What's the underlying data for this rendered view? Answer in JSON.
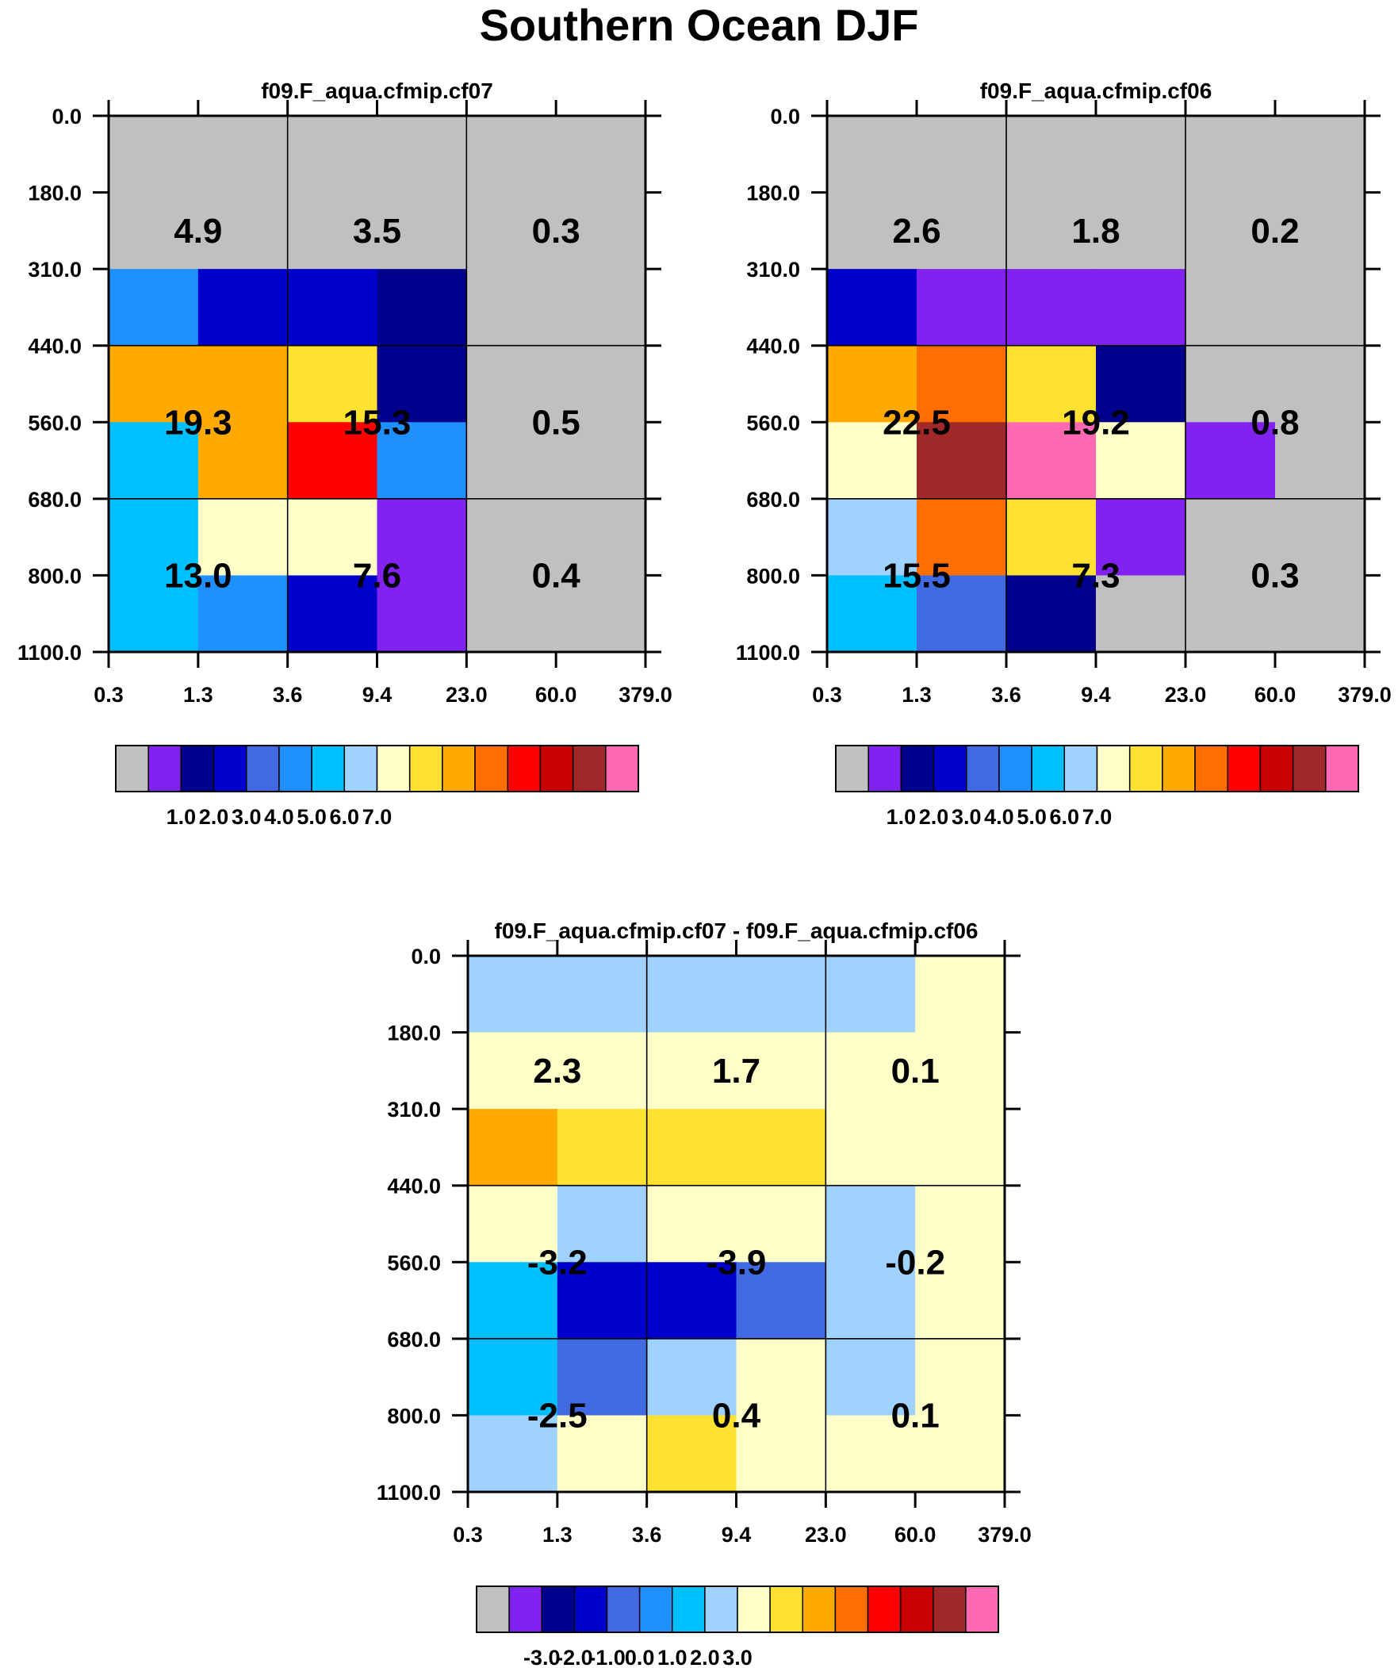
{
  "title": "Southern Ocean DJF",
  "palette": [
    "#c0c0c0",
    "#8222f0",
    "#00008c",
    "#0000cd",
    "#4169e1",
    "#1e90ff",
    "#00bfff",
    "#a0d2ff",
    "#ffffc8",
    "#ffe132",
    "#ffaa00",
    "#ff6e00",
    "#ff0000",
    "#c80000",
    "#a02828",
    "#ff69b4"
  ],
  "chart_data": [
    {
      "type": "heatmap",
      "title": "f09.F_aqua.cfmip.cf07",
      "x_ticks": [
        "0.3",
        "1.3",
        "3.6",
        "9.4",
        "23.0",
        "60.0",
        "379.0"
      ],
      "y_ticks": [
        "0.0",
        "180.0",
        "310.0",
        "440.0",
        "560.0",
        "680.0",
        "800.0",
        "1100.0"
      ],
      "color_index_grid": [
        [
          0,
          0,
          0,
          0,
          0,
          0
        ],
        [
          0,
          0,
          0,
          0,
          0,
          0
        ],
        [
          5,
          3,
          3,
          2,
          0,
          0
        ],
        [
          10,
          10,
          9,
          2,
          0,
          0
        ],
        [
          6,
          10,
          12,
          5,
          0,
          0
        ],
        [
          6,
          8,
          8,
          1,
          0,
          0
        ],
        [
          6,
          5,
          3,
          1,
          0,
          0
        ]
      ],
      "box_values": [
        [
          "4.9",
          "3.5",
          "0.3"
        ],
        [
          "19.3",
          "15.3",
          "0.5"
        ],
        [
          "13.0",
          "7.6",
          "0.4"
        ]
      ],
      "colorbar_labels": [
        "1.0",
        "2.0",
        "3.0",
        "4.0",
        "5.0",
        "6.0",
        "7.0"
      ]
    },
    {
      "type": "heatmap",
      "title": "f09.F_aqua.cfmip.cf06",
      "x_ticks": [
        "0.3",
        "1.3",
        "3.6",
        "9.4",
        "23.0",
        "60.0",
        "379.0"
      ],
      "y_ticks": [
        "0.0",
        "180.0",
        "310.0",
        "440.0",
        "560.0",
        "680.0",
        "800.0",
        "1100.0"
      ],
      "color_index_grid": [
        [
          0,
          0,
          0,
          0,
          0,
          0
        ],
        [
          0,
          0,
          0,
          0,
          0,
          0
        ],
        [
          3,
          1,
          1,
          1,
          0,
          0
        ],
        [
          10,
          11,
          9,
          2,
          0,
          0
        ],
        [
          8,
          14,
          15,
          8,
          1,
          0
        ],
        [
          7,
          11,
          9,
          1,
          0,
          0
        ],
        [
          6,
          4,
          2,
          0,
          0,
          0
        ]
      ],
      "box_values": [
        [
          "2.6",
          "1.8",
          "0.2"
        ],
        [
          "22.5",
          "19.2",
          "0.8"
        ],
        [
          "15.5",
          "7.3",
          "0.3"
        ]
      ],
      "colorbar_labels": [
        "1.0",
        "2.0",
        "3.0",
        "4.0",
        "5.0",
        "6.0",
        "7.0"
      ]
    },
    {
      "type": "heatmap",
      "title": "f09.F_aqua.cfmip.cf07 - f09.F_aqua.cfmip.cf06",
      "x_ticks": [
        "0.3",
        "1.3",
        "3.6",
        "9.4",
        "23.0",
        "60.0",
        "379.0"
      ],
      "y_ticks": [
        "0.0",
        "180.0",
        "310.0",
        "440.0",
        "560.0",
        "680.0",
        "800.0",
        "1100.0"
      ],
      "color_index_grid": [
        [
          7,
          7,
          7,
          7,
          7,
          8
        ],
        [
          8,
          8,
          8,
          8,
          8,
          8
        ],
        [
          10,
          9,
          9,
          9,
          8,
          8
        ],
        [
          8,
          7,
          8,
          8,
          7,
          8
        ],
        [
          6,
          3,
          3,
          4,
          7,
          8
        ],
        [
          6,
          4,
          7,
          8,
          7,
          8
        ],
        [
          7,
          8,
          9,
          8,
          8,
          8
        ]
      ],
      "box_values": [
        [
          "2.3",
          "1.7",
          "0.1"
        ],
        [
          "-3.2",
          "-3.9",
          "-0.2"
        ],
        [
          "-2.5",
          "0.4",
          "0.1"
        ]
      ],
      "colorbar_labels": [
        "-3.0",
        "-2.0",
        "-1.0",
        "0.0",
        "1.0",
        "2.0",
        "3.0"
      ]
    }
  ]
}
